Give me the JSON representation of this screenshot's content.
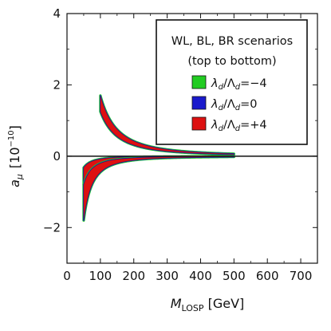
{
  "chart_data": {
    "type": "area",
    "title": "",
    "xlabel": {
      "base": "M",
      "sub": "LOSP",
      "unit": " [GeV]"
    },
    "ylabel": {
      "base": "a",
      "sub": "μ",
      "unit": "[10",
      "sup": "−10",
      "close": "]"
    },
    "xlim": [
      0,
      750
    ],
    "ylim": [
      -3,
      4
    ],
    "xticks": [
      0,
      100,
      200,
      300,
      400,
      500,
      600,
      700
    ],
    "yticks": [
      -2,
      0,
      2,
      4
    ],
    "yticklabels": [
      "−2",
      "0",
      "2",
      "4"
    ],
    "legend": {
      "position": "top-right",
      "title_lines": [
        "WL, BL, BR scenarios",
        "(top to bottom)"
      ],
      "entries": [
        {
          "prefix": "λ",
          "prefix_sub": "d",
          "mid": "/Λ",
          "mid_sub": "d",
          "suffix": "=−4",
          "color": "#22cc22"
        },
        {
          "prefix": "λ",
          "prefix_sub": "d",
          "mid": "/Λ",
          "mid_sub": "d",
          "suffix": "=0",
          "color": "#1a1acc"
        },
        {
          "prefix": "λ",
          "prefix_sub": "d",
          "mid": "/Λ",
          "mid_sub": "d",
          "suffix": "=+4",
          "color": "#dd1111"
        }
      ]
    },
    "series": [
      {
        "scenario": "WL",
        "x_range": [
          100,
          500
        ],
        "amp_inner": 125,
        "amp_outer": 170,
        "sign": 1,
        "edge_color": "#22cc22",
        "mid_color": "#1a1acc",
        "fill": "#dd1111"
      },
      {
        "scenario": "BL",
        "x_range": [
          50,
          500
        ],
        "amp_inner": 8,
        "amp_outer": 20,
        "sign": -1,
        "edge_color": "#22cc22",
        "mid_color": "#1a1acc",
        "fill": "#dd1111"
      },
      {
        "scenario": "BR",
        "x_range": [
          50,
          500
        ],
        "amp_inner": 20,
        "amp_outer": 45,
        "sign": -1,
        "edge_color": "#22cc22",
        "mid_color": "#1a1acc",
        "fill": "#dd1111"
      }
    ],
    "zero_line": true,
    "grid": false
  }
}
